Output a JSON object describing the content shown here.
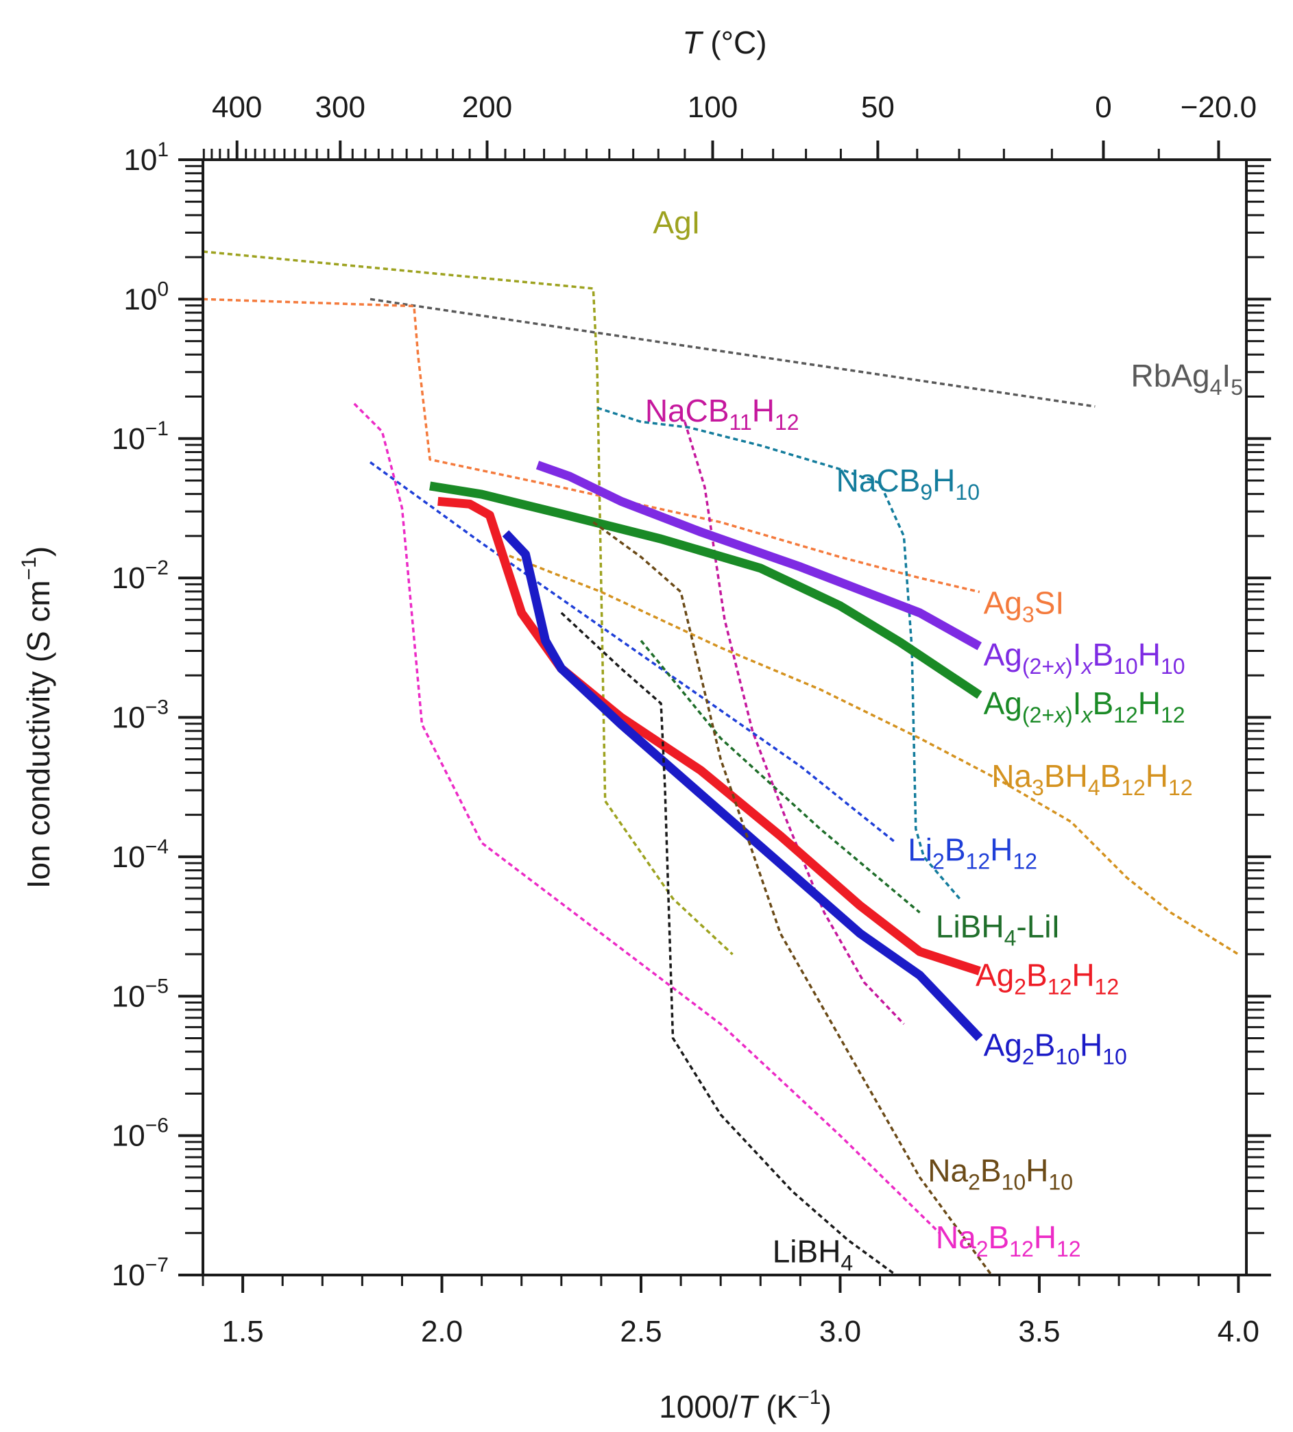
{
  "chart_data": {
    "type": "line",
    "title": "",
    "xlabel": "1000/T (K⁻¹)",
    "xlabel_parts": {
      "pre": "1000/",
      "var": "T",
      "post": " (K",
      "sup": "−1",
      "close": ")"
    },
    "ylabel": "Ion conductivity (S cm⁻¹)",
    "ylabel_parts": {
      "pre": "Ion conductivity (S cm",
      "sup": "−1",
      "close": ")"
    },
    "top_xlabel": "T (°C)",
    "top_xlabel_parts": {
      "var": "T",
      "post": " (°C)"
    },
    "xlim": [
      1.4,
      4.02
    ],
    "ylim_log10": [
      -7,
      1
    ],
    "yscale": "log",
    "grid": false,
    "x_ticks": [
      1.5,
      2.0,
      2.5,
      3.0,
      3.5,
      4.0
    ],
    "x_tick_labels": [
      "1.5",
      "2.0",
      "2.5",
      "3.0",
      "3.5",
      "4.0"
    ],
    "y_ticks": [
      {
        "base": "10",
        "exp": "1"
      },
      {
        "base": "10",
        "exp": "0"
      },
      {
        "base": "10",
        "exp": "−1"
      },
      {
        "base": "10",
        "exp": "−2"
      },
      {
        "base": "10",
        "exp": "−3"
      },
      {
        "base": "10",
        "exp": "−4"
      },
      {
        "base": "10",
        "exp": "−5"
      },
      {
        "base": "10",
        "exp": "−6"
      },
      {
        "base": "10",
        "exp": "−7"
      }
    ],
    "top_ticks_celsius": [
      400,
      300,
      200,
      100,
      50,
      0,
      -20
    ],
    "top_tick_labels": [
      "400",
      "300",
      "200",
      "100",
      "50",
      "0",
      "−20.0"
    ],
    "series": [
      {
        "name": "AgI",
        "label_parts": [
          [
            "AgI",
            ""
          ]
        ],
        "color": "#9da21f",
        "style": "dashed",
        "label_at": [
          2.53,
          0.55
        ],
        "x": [
          1.4,
          2.38,
          2.39,
          2.41,
          2.58,
          2.73
        ],
        "y": [
          0.341,
          0.076,
          -0.5,
          -3.6,
          -4.3,
          -4.7
        ]
      },
      {
        "name": "RbAg4I5",
        "label_parts": [
          [
            "RbAg",
            ""
          ],
          [
            "4",
            "sub"
          ],
          [
            "I",
            ""
          ],
          [
            "5",
            "sub"
          ]
        ],
        "color": "#595959",
        "style": "dashed",
        "label_at": [
          3.73,
          -0.55
        ],
        "x": [
          1.82,
          3.64
        ],
        "y": [
          0.0,
          -0.77
        ]
      },
      {
        "name": "Ag3SI",
        "label_parts": [
          [
            "Ag",
            ""
          ],
          [
            "3",
            "sub"
          ],
          [
            "SI",
            ""
          ]
        ],
        "color": "#f47a3c",
        "style": "dashed",
        "label_at": [
          3.36,
          -2.18
        ],
        "x": [
          1.4,
          1.93,
          1.94,
          1.97,
          2.3,
          2.7,
          3.0,
          3.2,
          3.35
        ],
        "y": [
          0.0,
          -0.05,
          -0.4,
          -1.15,
          -1.35,
          -1.6,
          -1.85,
          -2.0,
          -2.1
        ]
      },
      {
        "name": "NaCB11H12",
        "label_parts": [
          [
            "NaCB",
            ""
          ],
          [
            "11",
            "sub"
          ],
          [
            "H",
            ""
          ],
          [
            "12",
            "sub"
          ]
        ],
        "color": "#c5179d",
        "style": "dashed",
        "label_at": [
          2.51,
          -0.8
        ],
        "x": [
          2.61,
          2.66,
          2.71,
          2.78,
          2.86,
          2.96,
          3.06,
          3.16
        ],
        "y": [
          -0.88,
          -1.35,
          -2.3,
          -3.1,
          -3.7,
          -4.4,
          -4.9,
          -5.2
        ]
      },
      {
        "name": "NaCB9H10",
        "label_parts": [
          [
            "NaCB",
            ""
          ],
          [
            "9",
            "sub"
          ],
          [
            "H",
            ""
          ],
          [
            "10",
            "sub"
          ]
        ],
        "color": "#137c9c",
        "style": "dashed",
        "label_at": [
          2.99,
          -1.3
        ],
        "x": [
          2.39,
          2.5,
          2.62,
          2.8,
          3.0,
          3.1,
          3.16,
          3.18,
          3.19,
          3.21,
          3.3
        ],
        "y": [
          -0.78,
          -0.88,
          -0.92,
          -1.05,
          -1.22,
          -1.32,
          -1.7,
          -2.5,
          -3.8,
          -4.0,
          -4.3
        ]
      },
      {
        "name": "Ag(2+x)IxB10H10",
        "label_parts": [
          [
            "Ag",
            ""
          ],
          [
            "(2+",
            "sub"
          ],
          [
            "x",
            "subi"
          ],
          [
            ")",
            "sub"
          ],
          [
            "I",
            ""
          ],
          [
            "x",
            "subi"
          ],
          [
            "B",
            ""
          ],
          [
            "10",
            "sub"
          ],
          [
            "H",
            ""
          ],
          [
            "10",
            "sub"
          ]
        ],
        "color": "#7e2be3",
        "style": "solid",
        "label_at": [
          3.36,
          -2.55
        ],
        "x": [
          2.24,
          2.32,
          2.45,
          2.65,
          2.9,
          3.2,
          3.35
        ],
        "y": [
          -1.19,
          -1.27,
          -1.45,
          -1.67,
          -1.92,
          -2.25,
          -2.49
        ]
      },
      {
        "name": "Ag(2+x)IxB12H12",
        "label_parts": [
          [
            "Ag",
            ""
          ],
          [
            "(2+",
            "sub"
          ],
          [
            "x",
            "subi"
          ],
          [
            ")",
            "sub"
          ],
          [
            "I",
            ""
          ],
          [
            "x",
            "subi"
          ],
          [
            "B",
            ""
          ],
          [
            "12",
            "sub"
          ],
          [
            "H",
            ""
          ],
          [
            "12",
            "sub"
          ]
        ],
        "color": "#1a8a26",
        "style": "solid",
        "label_at": [
          3.36,
          -2.9
        ],
        "x": [
          1.97,
          2.1,
          2.3,
          2.55,
          2.8,
          3.0,
          3.15,
          3.35
        ],
        "y": [
          -1.34,
          -1.4,
          -1.54,
          -1.72,
          -1.93,
          -2.2,
          -2.46,
          -2.84
        ]
      },
      {
        "name": "Na3BH4B12H12",
        "label_parts": [
          [
            "Na",
            ""
          ],
          [
            "3",
            "sub"
          ],
          [
            "BH",
            ""
          ],
          [
            "4",
            "sub"
          ],
          [
            "B",
            ""
          ],
          [
            "12",
            "sub"
          ],
          [
            "H",
            ""
          ],
          [
            "12",
            "sub"
          ]
        ],
        "color": "#d4921f",
        "style": "dashed",
        "label_at": [
          3.38,
          -3.42
        ],
        "x": [
          2.15,
          2.4,
          2.7,
          2.95,
          3.2,
          3.4,
          3.58,
          3.72,
          3.83,
          4.0
        ],
        "y": [
          -1.82,
          -2.1,
          -2.5,
          -2.8,
          -3.15,
          -3.45,
          -3.75,
          -4.15,
          -4.4,
          -4.7
        ]
      },
      {
        "name": "Li2B12H12",
        "label_parts": [
          [
            "Li",
            ""
          ],
          [
            "2",
            "sub"
          ],
          [
            "B",
            ""
          ],
          [
            "12",
            "sub"
          ],
          [
            "H",
            ""
          ],
          [
            "12",
            "sub"
          ]
        ],
        "color": "#1f3fd8",
        "style": "dashed",
        "label_at": [
          3.17,
          -3.95
        ],
        "x": [
          1.82,
          2.1,
          2.4,
          2.7,
          2.9,
          3.14
        ],
        "y": [
          -1.17,
          -1.75,
          -2.35,
          -2.95,
          -3.35,
          -3.9
        ]
      },
      {
        "name": "LiBH4-LiI",
        "label_parts": [
          [
            "LiBH",
            ""
          ],
          [
            "4",
            "sub"
          ],
          [
            "-LiI",
            ""
          ]
        ],
        "color": "#1f6e2a",
        "style": "dashed",
        "label_at": [
          3.24,
          -4.5
        ],
        "x": [
          2.5,
          2.7,
          2.95,
          3.2
        ],
        "y": [
          -2.45,
          -3.15,
          -3.8,
          -4.4
        ]
      },
      {
        "name": "Ag2B12H12",
        "label_parts": [
          [
            "Ag",
            ""
          ],
          [
            "2",
            "sub"
          ],
          [
            "B",
            ""
          ],
          [
            "12",
            "sub"
          ],
          [
            "H",
            ""
          ],
          [
            "12",
            "sub"
          ]
        ],
        "color": "#ee1c25",
        "style": "solid",
        "label_at": [
          3.34,
          -4.85
        ],
        "x": [
          1.99,
          2.07,
          2.12,
          2.2,
          2.3,
          2.45,
          2.65,
          2.85,
          3.05,
          3.2,
          3.35
        ],
        "y": [
          -1.45,
          -1.47,
          -1.55,
          -2.25,
          -2.65,
          -3.0,
          -3.38,
          -3.85,
          -4.35,
          -4.68,
          -4.82
        ]
      },
      {
        "name": "Ag2B10H10",
        "label_parts": [
          [
            "Ag",
            ""
          ],
          [
            "2",
            "sub"
          ],
          [
            "B",
            ""
          ],
          [
            "10",
            "sub"
          ],
          [
            "H",
            ""
          ],
          [
            "10",
            "sub"
          ]
        ],
        "color": "#1b1bc7",
        "style": "solid",
        "label_at": [
          3.36,
          -5.35
        ],
        "x": [
          2.16,
          2.21,
          2.26,
          2.3,
          2.45,
          2.65,
          2.85,
          3.05,
          3.2,
          3.35
        ],
        "y": [
          -1.68,
          -1.83,
          -2.45,
          -2.65,
          -3.05,
          -3.55,
          -4.05,
          -4.55,
          -4.85,
          -5.3
        ]
      },
      {
        "name": "Na2B10H10",
        "label_parts": [
          [
            "Na",
            ""
          ],
          [
            "2",
            "sub"
          ],
          [
            "B",
            ""
          ],
          [
            "10",
            "sub"
          ],
          [
            "H",
            ""
          ],
          [
            "10",
            "sub"
          ]
        ],
        "color": "#6b4a17",
        "style": "dashed",
        "label_at": [
          3.22,
          -6.25
        ],
        "x": [
          2.38,
          2.5,
          2.6,
          2.7,
          2.85,
          3.05,
          3.2,
          3.38
        ],
        "y": [
          -1.6,
          -1.85,
          -2.1,
          -3.3,
          -4.55,
          -5.55,
          -6.3,
          -7.0
        ]
      },
      {
        "name": "Na2B12H12",
        "label_parts": [
          [
            "Na",
            ""
          ],
          [
            "2",
            "sub"
          ],
          [
            "B",
            ""
          ],
          [
            "12",
            "sub"
          ],
          [
            "H",
            ""
          ],
          [
            "12",
            "sub"
          ]
        ],
        "color": "#ec2bc6",
        "style": "dashed",
        "label_at": [
          3.24,
          -6.73
        ],
        "x": [
          1.78,
          1.85,
          1.9,
          1.95,
          2.1,
          2.4,
          2.7,
          3.0,
          3.25
        ],
        "y": [
          -0.75,
          -0.95,
          -1.5,
          -3.05,
          -3.9,
          -4.55,
          -5.2,
          -6.0,
          -6.7
        ]
      },
      {
        "name": "LiBH4",
        "label_parts": [
          [
            "LiBH",
            ""
          ],
          [
            "4",
            "sub"
          ]
        ],
        "color": "#1a1a1a",
        "style": "dashed",
        "label_at": [
          2.83,
          -6.83
        ],
        "x": [
          2.3,
          2.45,
          2.55,
          2.56,
          2.58,
          2.7,
          2.88,
          3.02,
          3.14
        ],
        "y": [
          -2.25,
          -2.65,
          -2.9,
          -3.5,
          -5.3,
          -5.85,
          -6.4,
          -6.75,
          -7.0
        ]
      }
    ]
  }
}
